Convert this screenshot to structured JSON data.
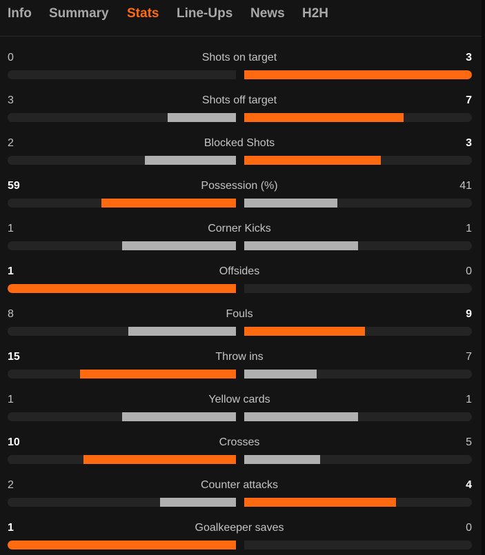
{
  "tabs": [
    {
      "label": "Info",
      "active": false
    },
    {
      "label": "Summary",
      "active": false
    },
    {
      "label": "Stats",
      "active": true
    },
    {
      "label": "Line-Ups",
      "active": false
    },
    {
      "label": "News",
      "active": false
    },
    {
      "label": "H2H",
      "active": false
    }
  ],
  "colors": {
    "accent": "#ff6a10",
    "bar_loser": "#b0b0b0",
    "bar_track": "#242424",
    "background": "#141414"
  },
  "stats": [
    {
      "label": "Shots on target",
      "home": "0",
      "away": "3"
    },
    {
      "label": "Shots off target",
      "home": "3",
      "away": "7"
    },
    {
      "label": "Blocked Shots",
      "home": "2",
      "away": "3"
    },
    {
      "label": "Possession (%)",
      "home": "59",
      "away": "41"
    },
    {
      "label": "Corner Kicks",
      "home": "1",
      "away": "1"
    },
    {
      "label": "Offsides",
      "home": "1",
      "away": "0"
    },
    {
      "label": "Fouls",
      "home": "8",
      "away": "9"
    },
    {
      "label": "Throw ins",
      "home": "15",
      "away": "7"
    },
    {
      "label": "Yellow cards",
      "home": "1",
      "away": "1"
    },
    {
      "label": "Crosses",
      "home": "10",
      "away": "5"
    },
    {
      "label": "Counter attacks",
      "home": "2",
      "away": "4"
    },
    {
      "label": "Goalkeeper saves",
      "home": "1",
      "away": "0"
    }
  ]
}
